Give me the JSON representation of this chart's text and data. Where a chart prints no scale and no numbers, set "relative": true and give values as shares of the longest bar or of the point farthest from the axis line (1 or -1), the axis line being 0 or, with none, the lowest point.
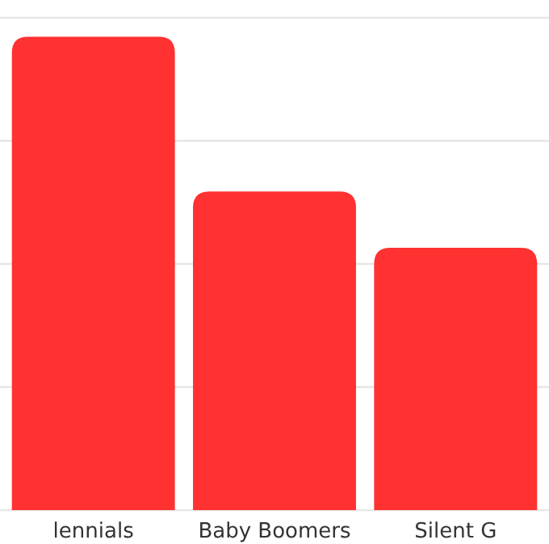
{
  "chart_data": {
    "type": "bar",
    "categories": [
      "lennials",
      "Baby Boomers",
      "Silent G"
    ],
    "values": [
      1,
      0.673,
      0.554
    ],
    "color": "#ff3131",
    "relative": true,
    "grid": "y"
  }
}
